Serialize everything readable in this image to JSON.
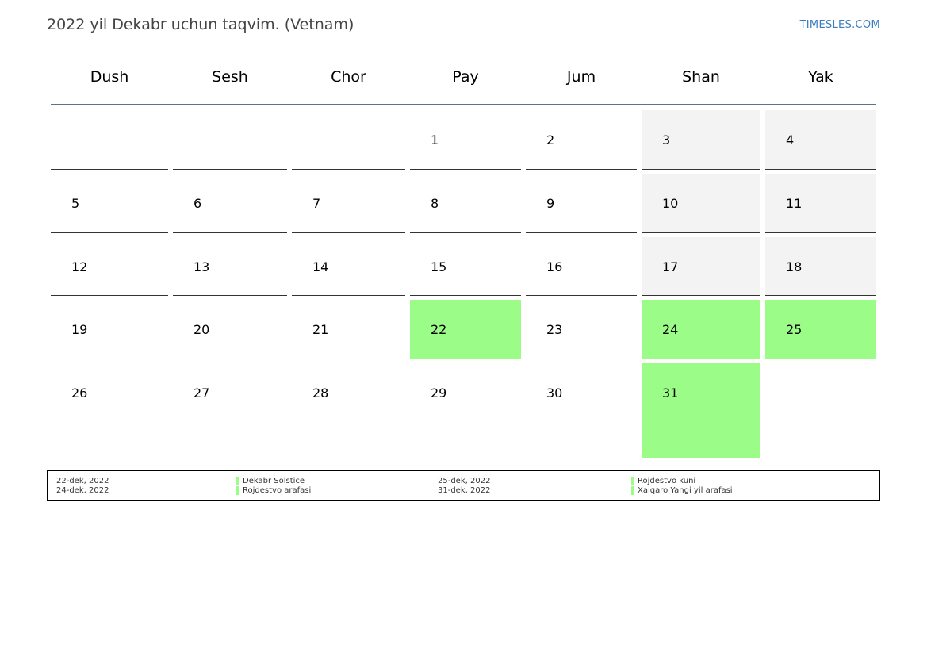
{
  "title": "2022 yil Dekabr uchun taqvim. (Vetnam)",
  "site": "TIMESLES.COM",
  "colors": {
    "weekend": "#f3f3f3",
    "holiday": "#9bfd87",
    "header_rule": "#5b7393",
    "site_link": "#3b7bbf"
  },
  "weekdays": [
    "Dush",
    "Sesh",
    "Chor",
    "Pay",
    "Jum",
    "Shan",
    "Yak"
  ],
  "weeks": [
    [
      null,
      null,
      null,
      {
        "day": "1"
      },
      {
        "day": "2"
      },
      {
        "day": "3",
        "weekend": true
      },
      {
        "day": "4",
        "weekend": true
      }
    ],
    [
      {
        "day": "5"
      },
      {
        "day": "6"
      },
      {
        "day": "7"
      },
      {
        "day": "8"
      },
      {
        "day": "9"
      },
      {
        "day": "10",
        "weekend": true
      },
      {
        "day": "11",
        "weekend": true
      }
    ],
    [
      {
        "day": "12"
      },
      {
        "day": "13"
      },
      {
        "day": "14"
      },
      {
        "day": "15"
      },
      {
        "day": "16"
      },
      {
        "day": "17",
        "weekend": true
      },
      {
        "day": "18",
        "weekend": true
      }
    ],
    [
      {
        "day": "19"
      },
      {
        "day": "20"
      },
      {
        "day": "21"
      },
      {
        "day": "22",
        "holiday": true
      },
      {
        "day": "23"
      },
      {
        "day": "24",
        "holiday": true
      },
      {
        "day": "25",
        "holiday": true
      }
    ],
    [
      {
        "day": "26"
      },
      {
        "day": "27"
      },
      {
        "day": "28"
      },
      {
        "day": "29"
      },
      {
        "day": "30"
      },
      {
        "day": "31",
        "holiday": true
      },
      null
    ]
  ],
  "legend": [
    {
      "date": "22-dek, 2022",
      "name": "Dekabr Solstice"
    },
    {
      "date": "24-dek, 2022",
      "name": "Rojdestvo arafasi"
    },
    {
      "date": "25-dek, 2022",
      "name": "Rojdestvo kuni"
    },
    {
      "date": "31-dek, 2022",
      "name": "Xalqaro Yangi yil arafasi"
    }
  ]
}
